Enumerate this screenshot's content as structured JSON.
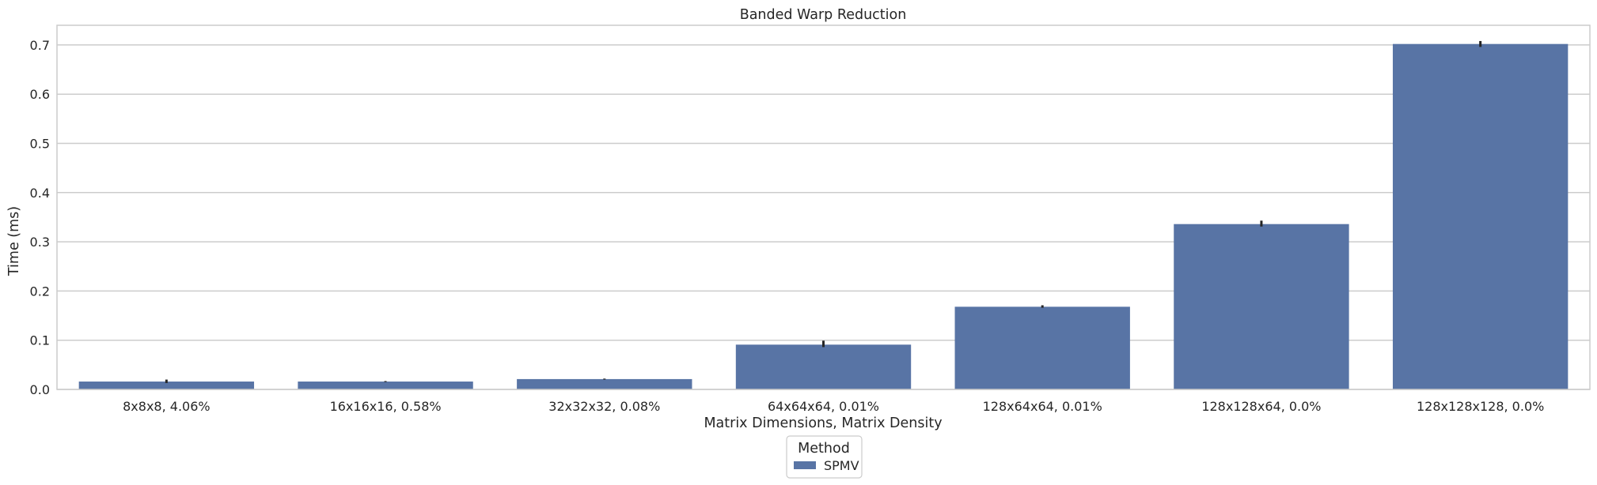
{
  "chart_data": {
    "type": "bar",
    "title": "Banded Warp Reduction",
    "xlabel": "Matrix Dimensions, Matrix Density",
    "ylabel": "Time (ms)",
    "categories": [
      "8x8x8, 4.06%",
      "16x16x16, 0.58%",
      "32x32x32, 0.08%",
      "64x64x64, 0.01%",
      "128x64x64, 0.01%",
      "128x128x64, 0.0%",
      "128x128x128, 0.0%"
    ],
    "series": [
      {
        "name": "SPMV",
        "values": [
          0.016,
          0.016,
          0.021,
          0.091,
          0.168,
          0.336,
          0.702
        ],
        "error_low": [
          0.013,
          0.015,
          0.02,
          0.086,
          0.166,
          0.331,
          0.696
        ],
        "error_high": [
          0.02,
          0.017,
          0.022,
          0.099,
          0.171,
          0.343,
          0.708
        ]
      }
    ],
    "ylim": [
      0,
      0.74
    ],
    "yticks": [
      0.0,
      0.1,
      0.2,
      0.3,
      0.4,
      0.5,
      0.6,
      0.7
    ],
    "ytick_labels": [
      "0.0",
      "0.1",
      "0.2",
      "0.3",
      "0.4",
      "0.5",
      "0.6",
      "0.7"
    ],
    "grid": "y",
    "legend": {
      "title": "Method",
      "placement": "bottom-center"
    },
    "colors": {
      "bar": "#5874a5",
      "error": "#262626",
      "grid": "#cccccc",
      "frame": "#cccccc"
    }
  }
}
